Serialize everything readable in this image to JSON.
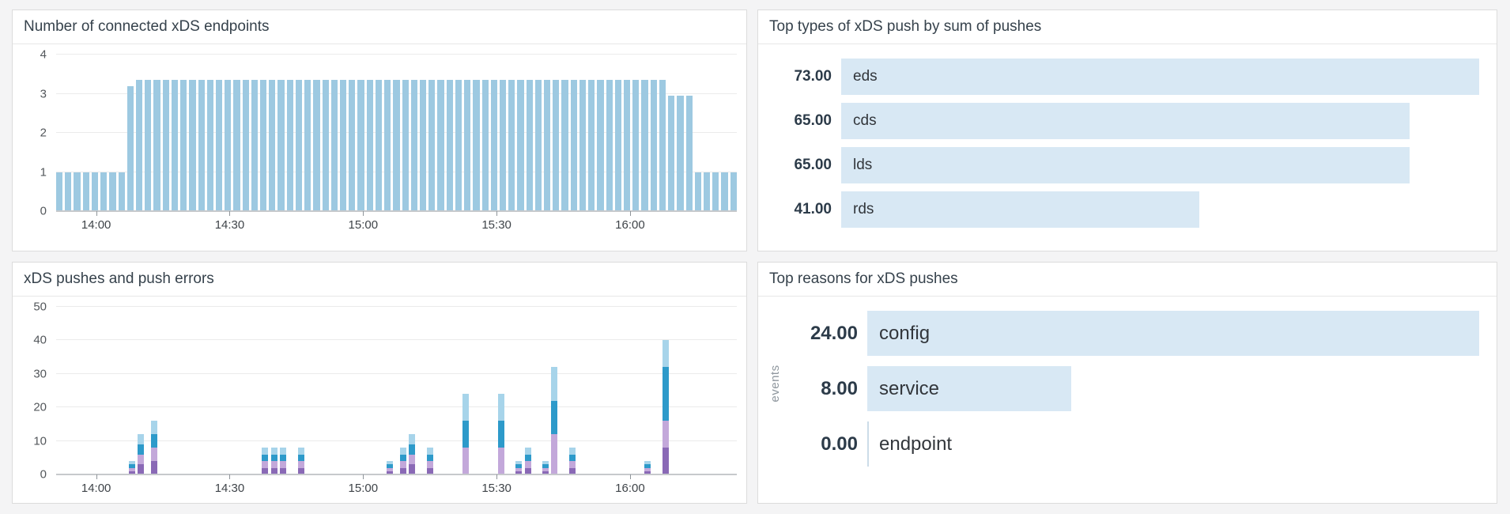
{
  "chart_data": [
    {
      "type": "bar",
      "title": "Number of connected xDS endpoints",
      "x_range": [
        "13:51",
        "16:24"
      ],
      "x_ticks": [
        "14:00",
        "14:30",
        "15:00",
        "15:30",
        "16:00"
      ],
      "ylim": [
        0,
        4
      ],
      "y_ticks": [
        0,
        1,
        2,
        3,
        4
      ],
      "bar_color": "#9dc9e1",
      "grid": true,
      "values": [
        1,
        1,
        1,
        1,
        1,
        1,
        1,
        1,
        3.2,
        3.35,
        3.35,
        3.35,
        3.35,
        3.35,
        3.35,
        3.35,
        3.35,
        3.35,
        3.35,
        3.35,
        3.35,
        3.35,
        3.35,
        3.35,
        3.35,
        3.35,
        3.35,
        3.35,
        3.35,
        3.35,
        3.35,
        3.35,
        3.35,
        3.35,
        3.35,
        3.35,
        3.35,
        3.35,
        3.35,
        3.35,
        3.35,
        3.35,
        3.35,
        3.35,
        3.35,
        3.35,
        3.35,
        3.35,
        3.35,
        3.35,
        3.35,
        3.35,
        3.35,
        3.35,
        3.35,
        3.35,
        3.35,
        3.35,
        3.35,
        3.35,
        3.35,
        3.35,
        3.35,
        3.35,
        3.35,
        3.35,
        3.35,
        3.35,
        3.35,
        2.95,
        2.95,
        2.95,
        1,
        1,
        1,
        1,
        1
      ]
    },
    {
      "type": "bar",
      "orientation": "horizontal",
      "title": "Top types of xDS push by sum of pushes",
      "categories": [
        "eds",
        "cds",
        "lds",
        "rds"
      ],
      "values": [
        73,
        65,
        65,
        41
      ],
      "value_labels": [
        "73.00",
        "65.00",
        "65.00",
        "41.00"
      ],
      "bar_color": "#d8e8f4",
      "legend": "none"
    },
    {
      "type": "bar",
      "stacked": true,
      "title": "xDS pushes and push errors",
      "x_range": [
        "13:51",
        "16:24"
      ],
      "x_ticks": [
        "14:00",
        "14:30",
        "15:00",
        "15:30",
        "16:00"
      ],
      "ylim": [
        0,
        50
      ],
      "y_ticks": [
        0,
        10,
        20,
        30,
        40,
        50
      ],
      "grid": true,
      "series": [
        {
          "name": "purple",
          "color": "#8a69b6"
        },
        {
          "name": "lavender",
          "color": "#c3a8da"
        },
        {
          "name": "blue",
          "color": "#2d9aca"
        },
        {
          "name": "light-blue",
          "color": "#a7d4ea"
        }
      ],
      "bars": [
        {
          "time": "14:08",
          "segments": [
            1,
            1,
            1,
            1
          ]
        },
        {
          "time": "14:10",
          "segments": [
            3,
            3,
            3,
            3
          ]
        },
        {
          "time": "14:13",
          "segments": [
            4,
            4,
            4,
            4
          ]
        },
        {
          "time": "14:38",
          "segments": [
            2,
            2,
            2,
            2
          ]
        },
        {
          "time": "14:40",
          "segments": [
            2,
            2,
            2,
            2
          ]
        },
        {
          "time": "14:42",
          "segments": [
            2,
            2,
            2,
            2
          ]
        },
        {
          "time": "14:46",
          "segments": [
            2,
            2,
            2,
            2
          ]
        },
        {
          "time": "15:06",
          "segments": [
            1,
            1,
            1,
            1
          ]
        },
        {
          "time": "15:09",
          "segments": [
            2,
            2,
            2,
            2
          ]
        },
        {
          "time": "15:11",
          "segments": [
            3,
            3,
            3,
            3
          ]
        },
        {
          "time": "15:15",
          "segments": [
            2,
            2,
            2,
            2
          ]
        },
        {
          "time": "15:23",
          "segments": [
            0,
            8,
            8,
            8
          ]
        },
        {
          "time": "15:31",
          "segments": [
            0,
            8,
            8,
            8
          ]
        },
        {
          "time": "15:35",
          "segments": [
            1,
            1,
            1,
            1
          ]
        },
        {
          "time": "15:37",
          "segments": [
            2,
            2,
            2,
            2
          ]
        },
        {
          "time": "15:41",
          "segments": [
            1,
            1,
            1,
            1
          ]
        },
        {
          "time": "15:43",
          "segments": [
            0,
            12,
            10,
            10
          ]
        },
        {
          "time": "15:47",
          "segments": [
            2,
            2,
            2,
            2
          ]
        },
        {
          "time": "16:04",
          "segments": [
            1,
            1,
            1,
            1
          ]
        },
        {
          "time": "16:08",
          "segments": [
            8,
            8,
            16,
            8
          ]
        }
      ]
    },
    {
      "type": "bar",
      "orientation": "horizontal",
      "title": "Top reasons for xDS pushes",
      "ylabel": "events",
      "categories": [
        "config",
        "service",
        "endpoint"
      ],
      "values": [
        24,
        8,
        0
      ],
      "value_labels": [
        "24.00",
        "8.00",
        "0.00"
      ],
      "bar_color": "#d8e8f4",
      "legend": "none"
    }
  ]
}
